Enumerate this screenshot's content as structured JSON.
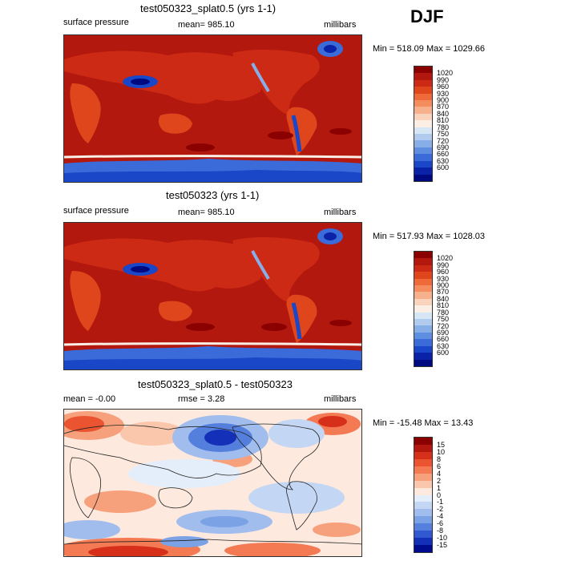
{
  "season": "DJF",
  "panels": [
    {
      "title": "test050323_splat0.5 (yrs 1-1)",
      "left_label": "surface pressure",
      "center_label": "mean= 985.10",
      "right_label": "millibars",
      "minmax": "Min = 518.09 Max = 1029.66",
      "type": "field"
    },
    {
      "title": "test050323 (yrs 1-1)",
      "left_label": "surface pressure",
      "center_label": "mean= 985.10",
      "right_label": "millibars",
      "minmax": "Min = 517.93 Max = 1028.03",
      "type": "field"
    },
    {
      "title": "test050323_splat0.5 - test050323",
      "left_label": "mean =   -0.00",
      "center_label": "rmse =    3.28",
      "right_label": "millibars",
      "minmax": "Min = -15.48 Max =   13.43",
      "type": "diff"
    }
  ],
  "colorbars": {
    "field": {
      "labels": [
        "1020",
        "990",
        "960",
        "930",
        "900",
        "870",
        "840",
        "810",
        "780",
        "750",
        "720",
        "690",
        "660",
        "630",
        "600"
      ],
      "colors": [
        "#8b0000",
        "#b2180e",
        "#cc2a14",
        "#e0461c",
        "#ee6a3a",
        "#f48c5e",
        "#f7b08c",
        "#fad3bd",
        "#fbeee4",
        "#d7e6f5",
        "#b0cbee",
        "#88aee8",
        "#5e8ee0",
        "#3a6bd8",
        "#1a46c8",
        "#0a22a8",
        "#000a80"
      ]
    },
    "diff": {
      "labels": [
        "15",
        "10",
        "8",
        "6",
        "4",
        "2",
        "1",
        "0",
        "-1",
        "-2",
        "-4",
        "-6",
        "-8",
        "-10",
        "-15"
      ],
      "colors": [
        "#8b0000",
        "#b2180e",
        "#d62f1a",
        "#ea5430",
        "#f37a52",
        "#f7a07c",
        "#fac6ac",
        "#fde9de",
        "#e4eefa",
        "#c3d6f4",
        "#a0bdee",
        "#7ca2e6",
        "#557fdc",
        "#3058cf",
        "#1530b8",
        "#000c90"
      ]
    }
  },
  "chart_data": [
    {
      "type": "heatmap",
      "title": "test050323_splat0.5 (yrs 1-1)",
      "variable": "surface pressure",
      "units": "millibars",
      "mean": 985.1,
      "min": 518.09,
      "max": 1029.66,
      "levels": [
        600,
        630,
        660,
        690,
        720,
        750,
        780,
        810,
        840,
        870,
        900,
        930,
        960,
        990,
        1020
      ]
    },
    {
      "type": "heatmap",
      "title": "test050323 (yrs 1-1)",
      "variable": "surface pressure",
      "units": "millibars",
      "mean": 985.1,
      "min": 517.93,
      "max": 1028.03,
      "levels": [
        600,
        630,
        660,
        690,
        720,
        750,
        780,
        810,
        840,
        870,
        900,
        930,
        960,
        990,
        1020
      ]
    },
    {
      "type": "heatmap",
      "title": "test050323_splat0.5 - test050323",
      "units": "millibars",
      "mean": -0.0,
      "rmse": 3.28,
      "min": -15.48,
      "max": 13.43,
      "levels": [
        -15,
        -10,
        -8,
        -6,
        -4,
        -2,
        -1,
        0,
        1,
        2,
        4,
        6,
        8,
        10,
        15
      ]
    }
  ]
}
